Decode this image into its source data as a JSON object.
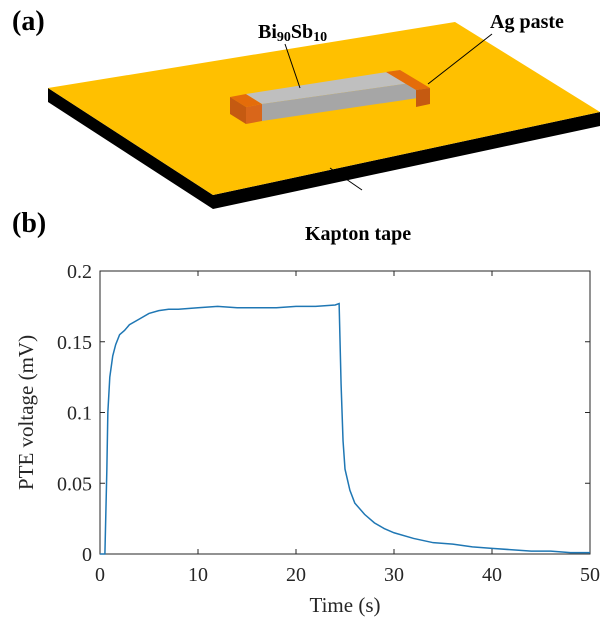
{
  "diagram": {
    "panel_label": "(a)",
    "material_label": [
      "Bi",
      "90",
      "Sb",
      "10"
    ],
    "contact_label": "Ag paste",
    "substrate_label": "Kapton tape"
  },
  "chart_data": {
    "type": "line",
    "panel_label": "(b)",
    "xlabel": "Time (s)",
    "ylabel": "PTE voltage (mV)",
    "x": [
      0,
      0.5,
      0.7,
      0.8,
      1,
      1.3,
      1.6,
      2,
      2.5,
      3,
      4,
      5,
      6,
      7,
      8,
      10,
      12,
      14,
      16,
      18,
      20,
      22,
      24,
      24.4,
      24.6,
      24.8,
      25,
      25.5,
      26,
      27,
      28,
      29,
      30,
      32,
      34,
      36,
      38,
      40,
      42,
      44,
      46,
      48,
      50
    ],
    "values": [
      0,
      0,
      0.06,
      0.1,
      0.125,
      0.14,
      0.148,
      0.155,
      0.158,
      0.162,
      0.166,
      0.17,
      0.172,
      0.173,
      0.173,
      0.174,
      0.175,
      0.174,
      0.174,
      0.174,
      0.175,
      0.175,
      0.176,
      0.177,
      0.12,
      0.08,
      0.06,
      0.045,
      0.036,
      0.028,
      0.022,
      0.018,
      0.015,
      0.011,
      0.008,
      0.007,
      0.005,
      0.004,
      0.003,
      0.002,
      0.002,
      0.001,
      0.001
    ],
    "color": "#1f77b4",
    "xlim": [
      0,
      50
    ],
    "ylim": [
      0,
      0.2
    ],
    "xticks": [
      0,
      10,
      20,
      30,
      40,
      50
    ],
    "yticks": [
      0,
      0.05,
      0.1,
      0.15,
      0.2
    ]
  }
}
